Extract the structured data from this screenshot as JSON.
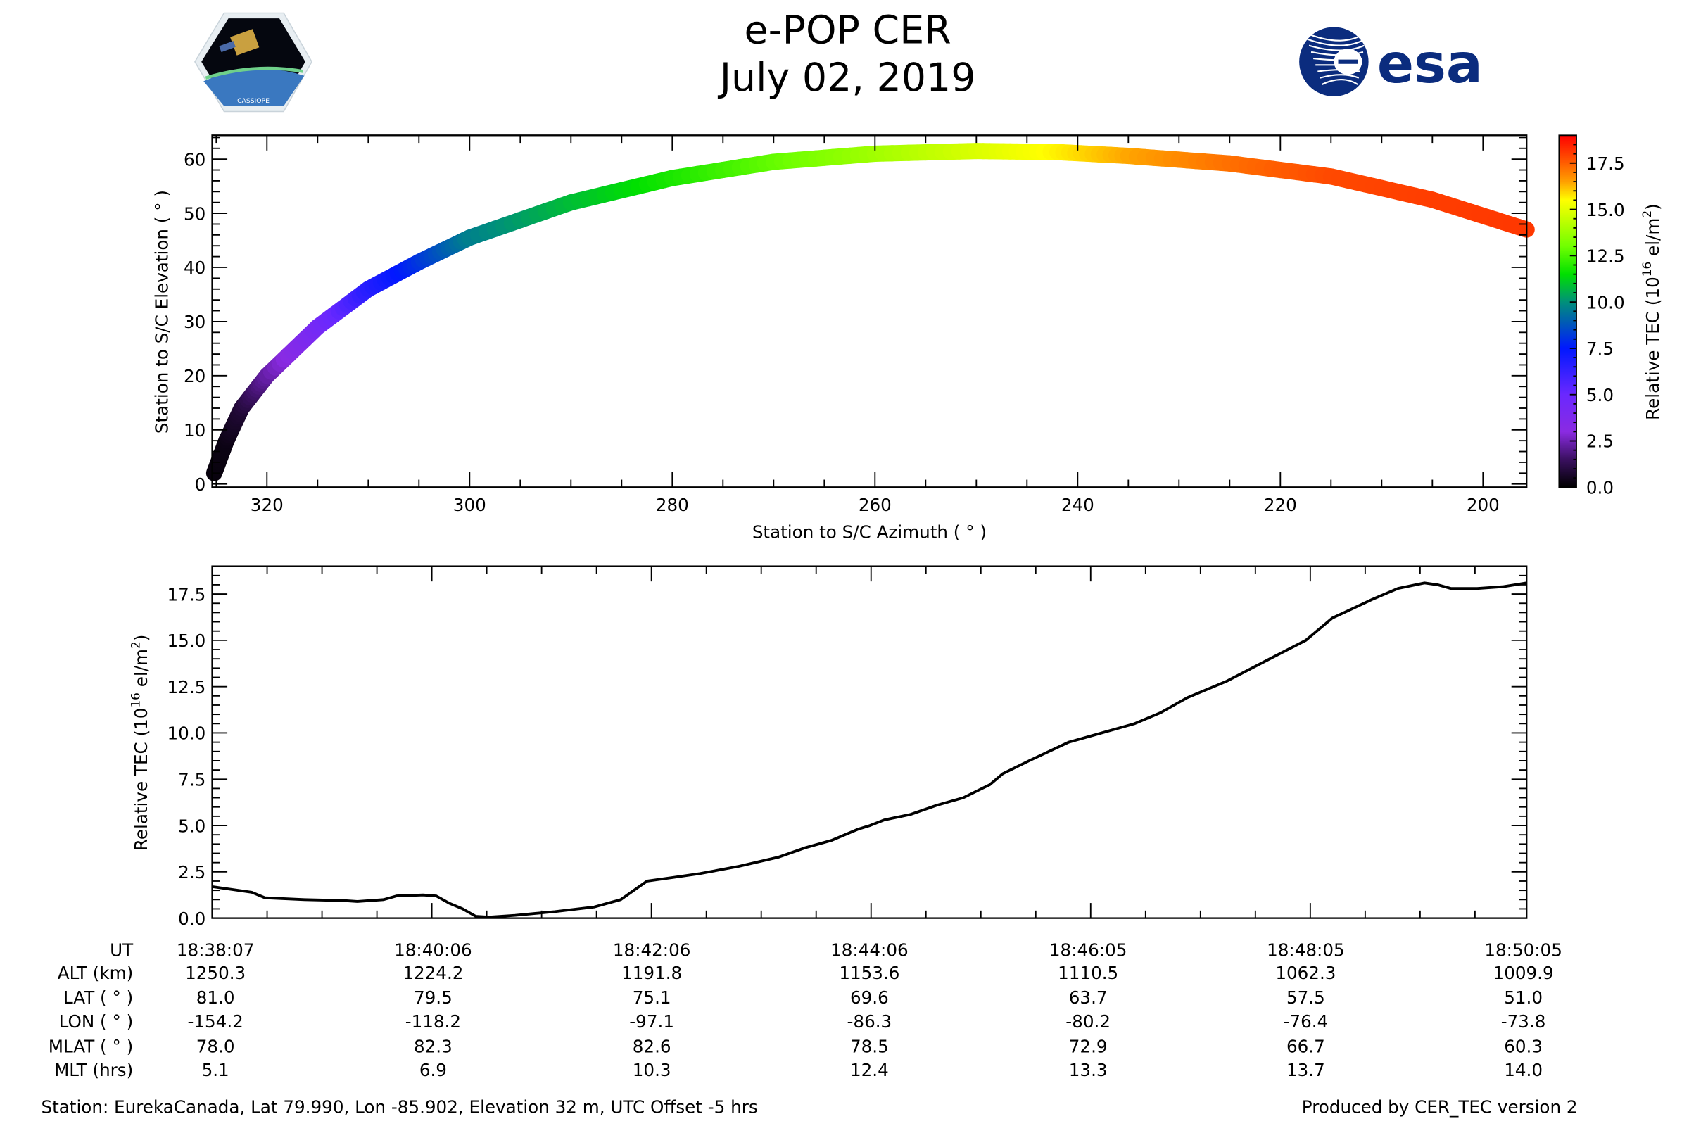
{
  "header": {
    "title": "e-POP CER",
    "date": "July 02, 2019"
  },
  "logos": {
    "left_text": "CASSIOPE",
    "right_text": "esa",
    "esa_color": "#0b2c7e"
  },
  "colorbar": {
    "label": [
      "Relative TEC (10",
      "16",
      " el/m",
      "2",
      ")"
    ],
    "range": [
      0,
      19
    ],
    "ticks": [
      "0.0",
      "2.5",
      "5.0",
      "7.5",
      "10.0",
      "12.5",
      "15.0",
      "17.5"
    ],
    "colormap": [
      [
        0,
        "#000000"
      ],
      [
        1.5,
        "#3a1060"
      ],
      [
        3,
        "#8a2be2"
      ],
      [
        5,
        "#6a28ff"
      ],
      [
        7.5,
        "#0018ff"
      ],
      [
        10,
        "#00907a"
      ],
      [
        11.5,
        "#00e000"
      ],
      [
        13,
        "#70ff00"
      ],
      [
        15.5,
        "#ffff00"
      ],
      [
        16.5,
        "#ffa000"
      ],
      [
        17.8,
        "#ff4a00"
      ],
      [
        19,
        "#ff0000"
      ]
    ]
  },
  "chart_data": [
    {
      "type": "scatter",
      "xlabel": "Station to S/C Azimuth ( ° )",
      "ylabel": "Station to S/C Elevation ( ° )",
      "xlim": [
        325.4,
        195.7
      ],
      "ylim": [
        -0.6,
        64.4
      ],
      "xticks": [
        "320",
        "300",
        "280",
        "260",
        "240",
        "220",
        "200"
      ],
      "yticks": [
        "0",
        "10",
        "20",
        "30",
        "40",
        "50",
        "60"
      ],
      "color_by": "Relative TEC",
      "points": [
        {
          "az": 325.2,
          "el": 2,
          "tec": 0.2
        },
        {
          "az": 324,
          "el": 8,
          "tec": 0.3
        },
        {
          "az": 322.5,
          "el": 14,
          "tec": 0.8
        },
        {
          "az": 320,
          "el": 20,
          "tec": 2.2
        },
        {
          "az": 315,
          "el": 29,
          "tec": 4.2
        },
        {
          "az": 310,
          "el": 36,
          "tec": 6.5
        },
        {
          "az": 305,
          "el": 41,
          "tec": 8
        },
        {
          "az": 300,
          "el": 45.5,
          "tec": 9.6
        },
        {
          "az": 290,
          "el": 52,
          "tec": 10.8
        },
        {
          "az": 280,
          "el": 56.5,
          "tec": 11.8
        },
        {
          "az": 270,
          "el": 59.5,
          "tec": 12.8
        },
        {
          "az": 260,
          "el": 61,
          "tec": 13.8
        },
        {
          "az": 250,
          "el": 61.5,
          "tec": 14.8
        },
        {
          "az": 242,
          "el": 61.3,
          "tec": 15.6
        },
        {
          "az": 235,
          "el": 60.6,
          "tec": 16.4
        },
        {
          "az": 225,
          "el": 59.2,
          "tec": 17.2
        },
        {
          "az": 215,
          "el": 56.8,
          "tec": 17.8
        },
        {
          "az": 205,
          "el": 52.5,
          "tec": 18
        },
        {
          "az": 195.7,
          "el": 47,
          "tec": 18.1
        }
      ]
    },
    {
      "type": "line",
      "xlabel": "UT",
      "ylabel": [
        "Relative TEC (10",
        "16",
        " el/m",
        "2",
        ")"
      ],
      "xlim_minutes": [
        0,
        11.97
      ],
      "ylim": [
        0,
        19
      ],
      "yticks": [
        "0.0",
        "2.5",
        "5.0",
        "7.5",
        "10.0",
        "12.5",
        "15.0",
        "17.5"
      ],
      "x_minutes": [
        0,
        0.36,
        0.48,
        0.84,
        1.2,
        1.32,
        1.56,
        1.68,
        1.92,
        2.04,
        2.16,
        2.28,
        2.4,
        2.52,
        2.76,
        3.12,
        3.48,
        3.6,
        3.72,
        3.84,
        3.96,
        4.2,
        4.44,
        4.8,
        5.16,
        5.4,
        5.64,
        5.88,
        5.99,
        6.12,
        6.36,
        6.6,
        6.84,
        7.08,
        7.2,
        7.44,
        7.8,
        8.04,
        8.4,
        8.64,
        8.88,
        9.24,
        9.6,
        9.96,
        10.2,
        10.56,
        10.8,
        11.04,
        11.16,
        11.28,
        11.52,
        11.76,
        11.97
      ],
      "values": [
        1.7,
        1.4,
        1.1,
        1.0,
        0.95,
        0.9,
        1.0,
        1.2,
        1.25,
        1.2,
        0.8,
        0.5,
        0.1,
        0.05,
        0.15,
        0.35,
        0.6,
        0.8,
        1.0,
        1.5,
        2.0,
        2.2,
        2.4,
        2.8,
        3.3,
        3.8,
        4.2,
        4.8,
        5.0,
        5.3,
        5.6,
        6.1,
        6.5,
        7.2,
        7.8,
        8.5,
        9.5,
        9.9,
        10.5,
        11.1,
        11.9,
        12.8,
        13.9,
        15.0,
        16.2,
        17.2,
        17.8,
        18.1,
        18.0,
        17.8,
        17.8,
        17.9,
        18.1
      ]
    }
  ],
  "table": {
    "row_labels": [
      "UT",
      "ALT (km)",
      "LAT ( ° )",
      "LON ( ° )",
      "MLAT ( ° )",
      "MLT (hrs)"
    ],
    "columns": [
      [
        "18:38:07",
        "1250.3",
        "81.0",
        "-154.2",
        "78.0",
        "5.1"
      ],
      [
        "18:40:06",
        "1224.2",
        "79.5",
        "-118.2",
        "82.3",
        "6.9"
      ],
      [
        "18:42:06",
        "1191.8",
        "75.1",
        "-97.1",
        "82.6",
        "10.3"
      ],
      [
        "18:44:06",
        "1153.6",
        "69.6",
        "-86.3",
        "78.5",
        "12.4"
      ],
      [
        "18:46:05",
        "1110.5",
        "63.7",
        "-80.2",
        "72.9",
        "13.3"
      ],
      [
        "18:48:05",
        "1062.3",
        "57.5",
        "-76.4",
        "66.7",
        "13.7"
      ],
      [
        "18:50:05",
        "1009.9",
        "51.0",
        "-73.8",
        "60.3",
        "14.0"
      ]
    ]
  },
  "footer": {
    "station": "Station: EurekaCanada, Lat 79.990, Lon -85.902, Elevation 32 m, UTC Offset -5 hrs",
    "produced": "Produced by CER_TEC version 2"
  }
}
